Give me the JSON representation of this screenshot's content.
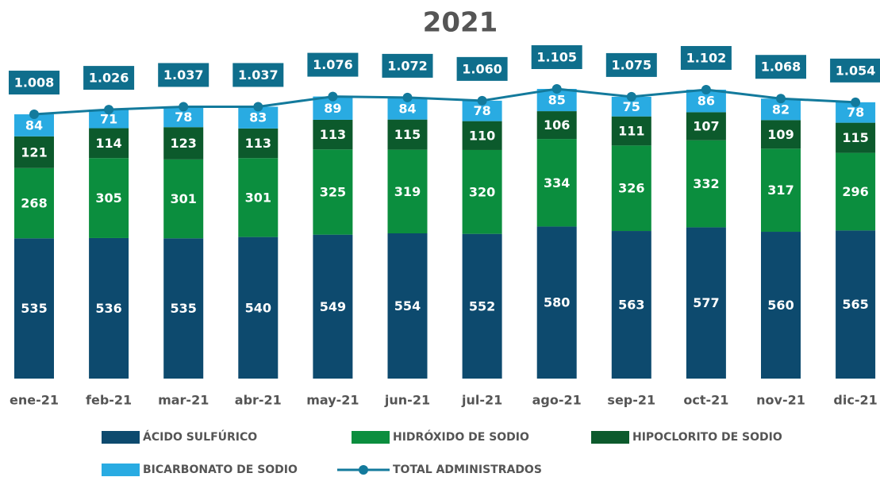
{
  "chart_data": {
    "type": "stacked_bar_line",
    "title": "2021",
    "categories": [
      "ene-21",
      "feb-21",
      "mar-21",
      "abr-21",
      "may-21",
      "jun-21",
      "jul-21",
      "ago-21",
      "sep-21",
      "oct-21",
      "nov-21",
      "dic-21"
    ],
    "series": [
      {
        "name": "ÁCIDO SULFÚRICO",
        "color": "#0d4a6e",
        "values": [
          535,
          536,
          535,
          540,
          549,
          554,
          552,
          580,
          563,
          577,
          560,
          565
        ]
      },
      {
        "name": "HIDRÓXIDO DE SODIO",
        "color": "#0b8e3e",
        "values": [
          268,
          305,
          301,
          301,
          325,
          319,
          320,
          334,
          326,
          332,
          317,
          296
        ]
      },
      {
        "name": "HIPOCLORITO DE SODIO",
        "color": "#0c5a2c",
        "values": [
          121,
          114,
          123,
          113,
          113,
          115,
          110,
          106,
          111,
          107,
          109,
          115
        ]
      },
      {
        "name": "BICARBONATO DE SODIO",
        "color": "#29abe2",
        "values": [
          84,
          71,
          78,
          83,
          89,
          84,
          78,
          85,
          75,
          86,
          82,
          78
        ]
      },
      {
        "name": "TOTAL ADMINISTRADOS",
        "color": "#137a9c",
        "type": "line",
        "values": [
          1008,
          1026,
          1037,
          1037,
          1076,
          1072,
          1060,
          1105,
          1075,
          1102,
          1068,
          1054
        ],
        "value_labels": [
          "1.008",
          "1.026",
          "1.037",
          "1.037",
          "1.076",
          "1.072",
          "1.060",
          "1.105",
          "1.075",
          "1.102",
          "1.068",
          "1.054"
        ]
      }
    ]
  }
}
